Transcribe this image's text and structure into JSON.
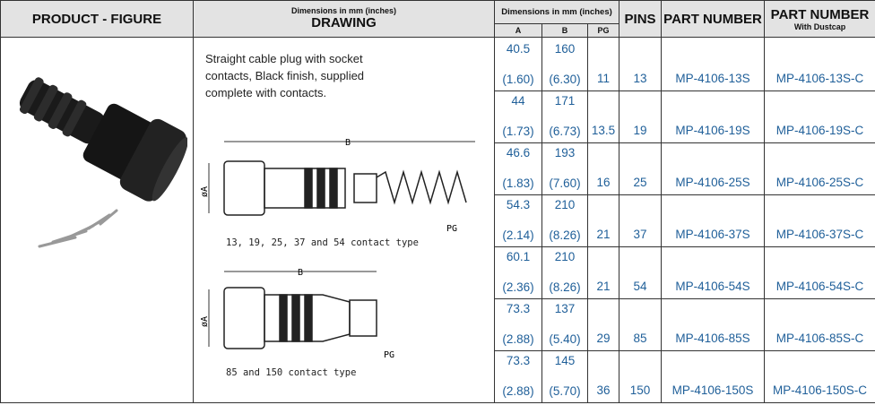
{
  "header": {
    "product_figure": "PRODUCT - FIGURE",
    "drawing_sub": "Dimensions in mm (inches)",
    "drawing": "DRAWING",
    "dims": "Dimensions in mm (inches)",
    "col_a": "A",
    "col_b": "B",
    "col_pg": "PG",
    "pins": "PINS",
    "part_number": "PART NUMBER",
    "part_number_dust": "PART NUMBER",
    "with_dustcap": "With Dustcap"
  },
  "description": "Straight cable plug with socket contacts, Black finish, supplied complete with contacts.",
  "drawings": [
    {
      "caption": "13, 19, 25, 37 and 54 contact type",
      "label_b": "B",
      "label_a": "øA",
      "label_pg": "PG"
    },
    {
      "caption": "85 and 150 contact type",
      "label_b": "B",
      "label_a": "øA",
      "label_pg": "PG"
    }
  ],
  "rows": [
    {
      "a": "40.5",
      "a_in": "(1.60)",
      "b": "160",
      "b_in": "(6.30)",
      "pg": "11",
      "pins": "13",
      "pn": "MP-4106-13S",
      "pn_c": "MP-4106-13S-C"
    },
    {
      "a": "44",
      "a_in": "(1.73)",
      "b": "171",
      "b_in": "(6.73)",
      "pg": "13.5",
      "pins": "19",
      "pn": "MP-4106-19S",
      "pn_c": "MP-4106-19S-C"
    },
    {
      "a": "46.6",
      "a_in": "(1.83)",
      "b": "193",
      "b_in": "(7.60)",
      "pg": "16",
      "pins": "25",
      "pn": "MP-4106-25S",
      "pn_c": "MP-4106-25S-C"
    },
    {
      "a": "54.3",
      "a_in": "(2.14)",
      "b": "210",
      "b_in": "(8.26)",
      "pg": "21",
      "pins": "37",
      "pn": "MP-4106-37S",
      "pn_c": "MP-4106-37S-C"
    },
    {
      "a": "60.1",
      "a_in": "(2.36)",
      "b": "210",
      "b_in": "(8.26)",
      "pg": "21",
      "pins": "54",
      "pn": "MP-4106-54S",
      "pn_c": "MP-4106-54S-C"
    },
    {
      "a": "73.3",
      "a_in": "(2.88)",
      "b": "137",
      "b_in": "(5.40)",
      "pg": "29",
      "pins": "85",
      "pn": "MP-4106-85S",
      "pn_c": "MP-4106-85S-C"
    },
    {
      "a": "73.3",
      "a_in": "(2.88)",
      "b": "145",
      "b_in": "(5.70)",
      "pg": "36",
      "pins": "150",
      "pn": "MP-4106-150S",
      "pn_c": "MP-4106-150S-C"
    }
  ]
}
